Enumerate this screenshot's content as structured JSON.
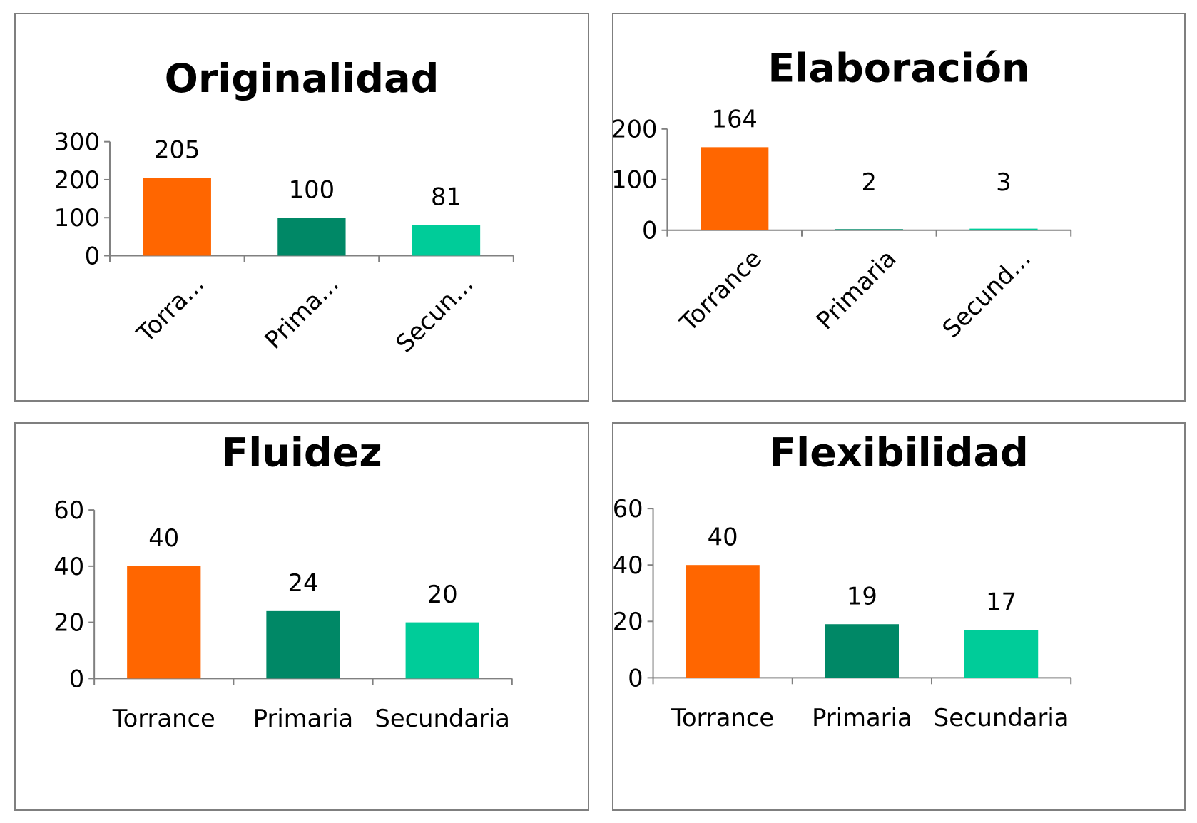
{
  "colors": {
    "Torrance": "#ff6600",
    "Primaria": "#008866",
    "Secundaria": "#00cc99",
    "axis": "#808080"
  },
  "chart_data": [
    {
      "type": "bar",
      "title": "Originalidad",
      "categories": [
        "Torrance",
        "Primaria",
        "Secundaria"
      ],
      "category_labels": [
        "Torra...",
        "Prima...",
        "Secun..."
      ],
      "values": [
        205,
        100,
        81
      ],
      "data_labels": [
        "205",
        "100",
        "81"
      ],
      "yticks": [
        "0",
        "100",
        "200",
        "300"
      ],
      "ylim": [
        0,
        300
      ],
      "xlabel": "",
      "ylabel": "",
      "grid": false,
      "legend": "none",
      "category_labels_rotated": true
    },
    {
      "type": "bar",
      "title": "Elaboración",
      "categories": [
        "Torrance",
        "Primaria",
        "Secundaria"
      ],
      "category_labels": [
        "Torrance",
        "Primaria",
        "Secund..."
      ],
      "values": [
        164,
        2,
        3
      ],
      "data_labels": [
        "164",
        "2",
        "3"
      ],
      "yticks": [
        "0",
        "100",
        "200"
      ],
      "ylim": [
        0,
        200
      ],
      "xlabel": "",
      "ylabel": "",
      "grid": false,
      "legend": "none",
      "category_labels_rotated": true
    },
    {
      "type": "bar",
      "title": "Fluidez",
      "categories": [
        "Torrance",
        "Primaria",
        "Secundaria"
      ],
      "category_labels": [
        "Torrance",
        "Primaria",
        "Secundaria"
      ],
      "values": [
        40,
        24,
        20
      ],
      "data_labels": [
        "40",
        "24",
        "20"
      ],
      "yticks": [
        "0",
        "20",
        "40",
        "60"
      ],
      "ylim": [
        0,
        60
      ],
      "xlabel": "",
      "ylabel": "",
      "grid": false,
      "legend": "none",
      "category_labels_rotated": false
    },
    {
      "type": "bar",
      "title": "Flexibilidad",
      "categories": [
        "Torrance",
        "Primaria",
        "Secundaria"
      ],
      "category_labels": [
        "Torrance",
        "Primaria",
        "Secundaria"
      ],
      "values": [
        40,
        19,
        17
      ],
      "data_labels": [
        "40",
        "19",
        "17"
      ],
      "yticks": [
        "0",
        "20",
        "40",
        "60"
      ],
      "ylim": [
        0,
        60
      ],
      "xlabel": "",
      "ylabel": "",
      "grid": false,
      "legend": "none",
      "category_labels_rotated": false
    }
  ]
}
